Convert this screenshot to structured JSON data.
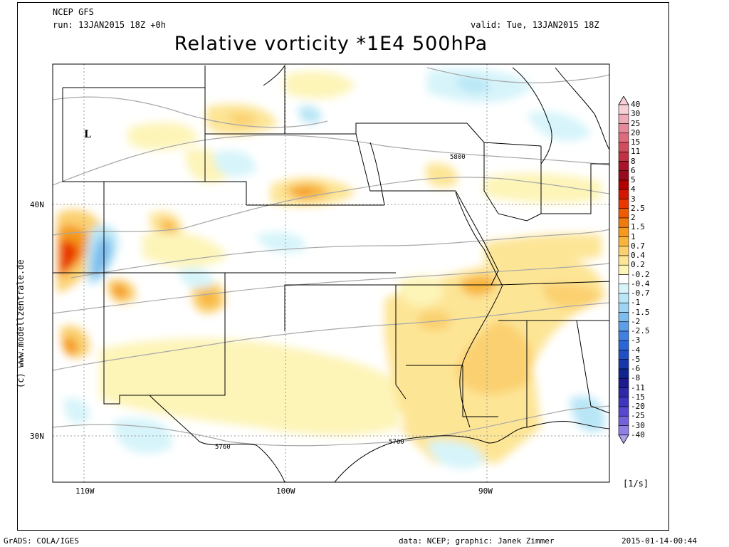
{
  "header": {
    "model": "NCEP GFS",
    "run": "run: 13JAN2015 18Z +0h",
    "valid": "valid: Tue, 13JAN2015 18Z",
    "title": "Relative vorticity *1E4 500hPa"
  },
  "map": {
    "lon_labels": [
      "110W",
      "100W",
      "90W"
    ],
    "lat_labels": [
      "40N",
      "30N"
    ],
    "contour_labels": [
      "5800",
      "5760",
      "5760"
    ],
    "low_marker": "L",
    "side_credit": "(c) www.modellzentrale.de"
  },
  "colorbar": {
    "labels": [
      "40",
      "30",
      "25",
      "20",
      "15",
      "11",
      "8",
      "6",
      "5",
      "4",
      "3",
      "2.5",
      "2",
      "1.5",
      "1",
      "0.7",
      "0.4",
      "0.2",
      "-0.2",
      "-0.4",
      "-0.7",
      "-1",
      "-1.5",
      "-2",
      "-2.5",
      "-3",
      "-4",
      "-5",
      "-6",
      "-8",
      "-11",
      "-15",
      "-20",
      "-25",
      "-30",
      "-40"
    ],
    "colors": [
      "#f7d0d6",
      "#eeaab6",
      "#e58a98",
      "#dc6c7a",
      "#cf4e5e",
      "#c23044",
      "#a8142a",
      "#960c1c",
      "#b20000",
      "#d41800",
      "#e83800",
      "#f05a00",
      "#f07a10",
      "#f59a1a",
      "#f8b53c",
      "#fbd070",
      "#fde596",
      "#fdf4b8",
      "#ffffff",
      "#d6f4fa",
      "#b8e6f6",
      "#9cd4f2",
      "#7cbcee",
      "#5c9ee8",
      "#4080e0",
      "#2c66d6",
      "#2050c4",
      "#1838aa",
      "#102490",
      "#1c1a8e",
      "#2c28a6",
      "#4036be",
      "#5848d0",
      "#7462dc",
      "#9080e6",
      "#b0a2ee"
    ],
    "unit": "[1/s]"
  },
  "footer": {
    "left": "GrADS: COLA/IGES",
    "center": "data: NCEP; graphic: Janek Zimmer",
    "right": "2015-01-14-00:44"
  }
}
